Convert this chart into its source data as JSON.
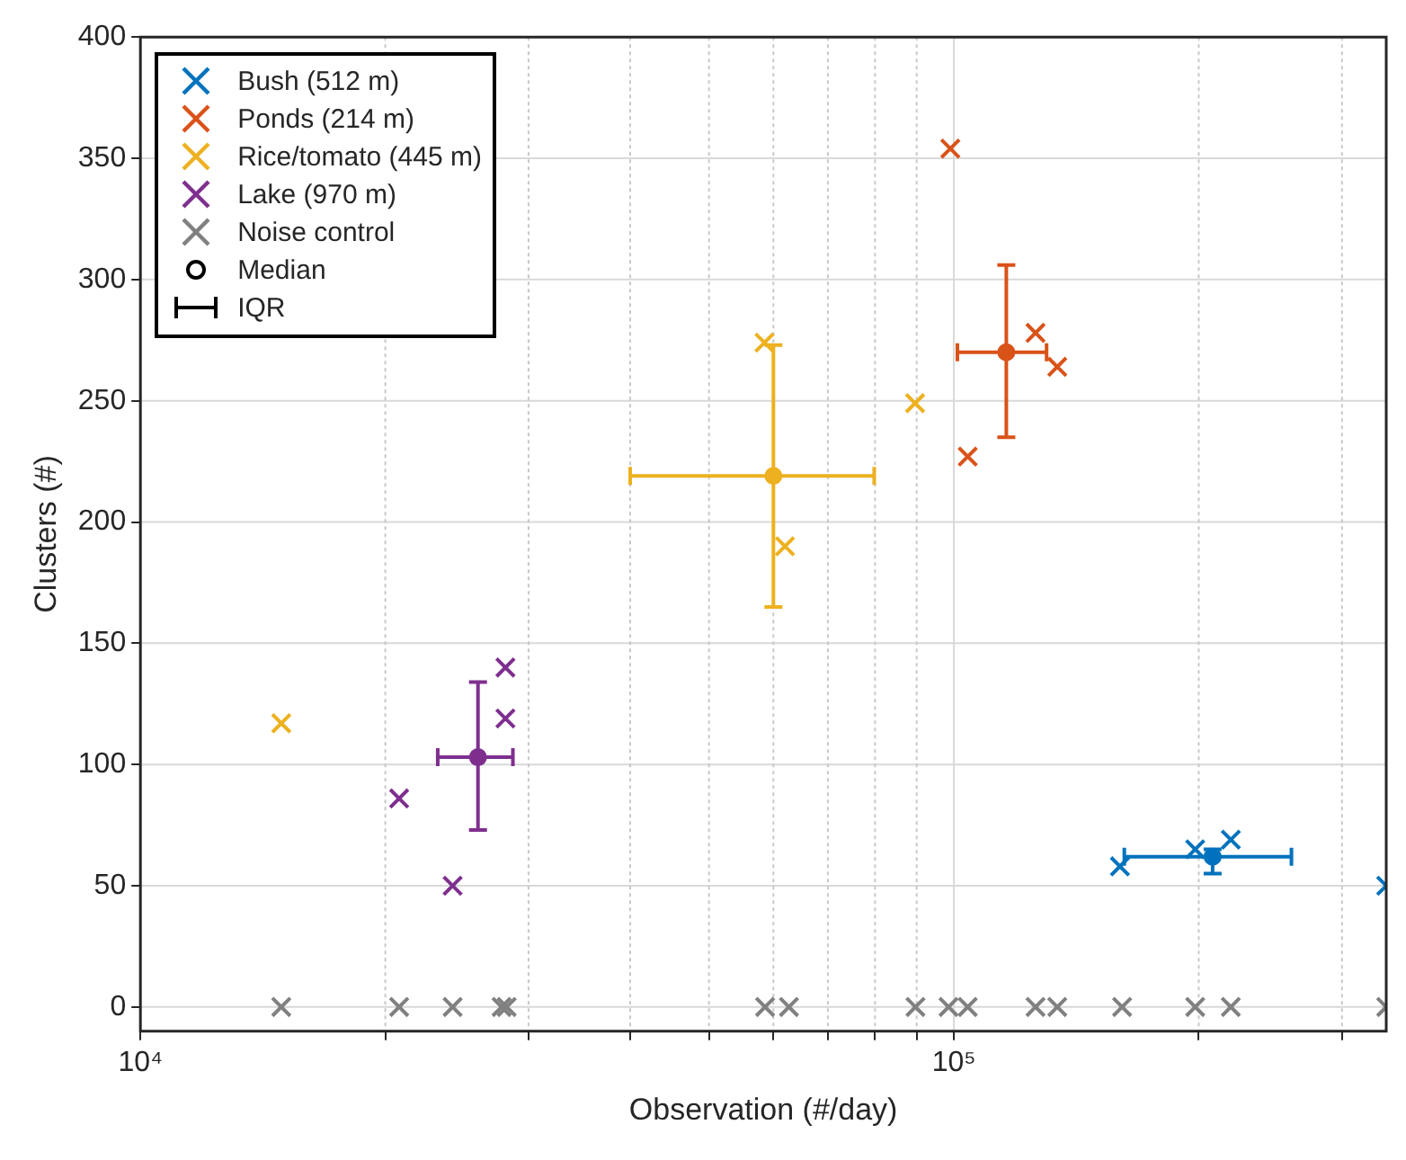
{
  "chart_data": {
    "type": "scatter",
    "xlabel": "Observation (#/day)",
    "ylabel": "Clusters (#)",
    "log": "x",
    "marker": "cross",
    "grid": true,
    "legend": "top left",
    "xlim": [
      10000,
      340000
    ],
    "ylim": [
      -10,
      400
    ],
    "xticks": [
      {
        "value": 10000,
        "label": "10⁴"
      },
      {
        "value": 20000,
        "label": null
      },
      {
        "value": 30000,
        "label": null
      },
      {
        "value": 40000,
        "label": null
      },
      {
        "value": 50000,
        "label": null
      },
      {
        "value": 60000,
        "label": null
      },
      {
        "value": 70000,
        "label": null
      },
      {
        "value": 80000,
        "label": null
      },
      {
        "value": 90000,
        "label": null
      },
      {
        "value": 100000,
        "label": "10⁵"
      },
      {
        "value": 200000,
        "label": null
      },
      {
        "value": 300000,
        "label": null
      }
    ],
    "yticks": [
      0,
      50,
      100,
      150,
      200,
      250,
      300,
      350,
      400
    ],
    "series": [
      {
        "name": "Bush (512 m)",
        "color": "#0072bd",
        "x": [
          160000,
          198000,
          219000,
          340000
        ],
        "values": [
          58,
          65,
          69,
          50
        ]
      },
      {
        "name": "Ponds (214 m)",
        "color": "#d95319",
        "x": [
          99000,
          104000,
          126000,
          134000
        ],
        "values": [
          354,
          227,
          278,
          264
        ]
      },
      {
        "name": "Rice/tomato (445 m)",
        "color": "#edb120",
        "x": [
          14900,
          58500,
          62000,
          89600
        ],
        "values": [
          117,
          274,
          190,
          249
        ]
      },
      {
        "name": "Lake (970 m)",
        "color": "#7e2f8e",
        "x": [
          20800,
          24200,
          28100,
          28100
        ],
        "values": [
          86,
          50,
          119,
          140
        ]
      },
      {
        "name": "Noise control",
        "color": "#808080",
        "x": [
          14900,
          20800,
          24200,
          27800,
          28200,
          58600,
          62700,
          89700,
          98500,
          104000,
          126000,
          134000,
          161000,
          198000,
          219000,
          340000
        ],
        "values": [
          0,
          0,
          0,
          0,
          0,
          0,
          0,
          0,
          0,
          0,
          0,
          0,
          0,
          0,
          0,
          0
        ]
      },
      {
        "marker": "circle",
        "colors": [
          "#0072bd",
          "#d95319",
          "#edb120",
          "#7e2f8e"
        ],
        "x": [
          208000,
          116000,
          60000,
          26000
        ],
        "values": [
          62,
          270,
          219,
          103
        ],
        "errors": [
          [
            55,
            65
          ],
          [
            235,
            306
          ],
          [
            165,
            273
          ],
          [
            73,
            134
          ]
        ],
        "xerrors": [
          [
            162000,
            260000
          ],
          [
            101000,
            130000
          ],
          [
            40000,
            79800
          ],
          [
            23200,
            28700
          ]
        ]
      }
    ],
    "annotations": [
      "Median",
      "IQR"
    ]
  }
}
